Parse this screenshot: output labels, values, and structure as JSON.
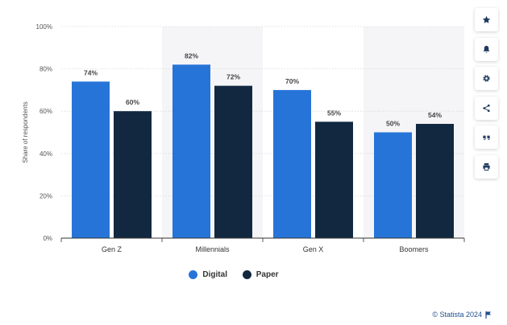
{
  "chart_data": {
    "type": "bar",
    "categories": [
      "Gen Z",
      "Millennials",
      "Gen X",
      "Boomers"
    ],
    "series": [
      {
        "name": "Digital",
        "values": [
          74,
          82,
          70,
          50
        ],
        "color": "#2774d8"
      },
      {
        "name": "Paper",
        "values": [
          60,
          72,
          55,
          54
        ],
        "color": "#112840"
      }
    ],
    "value_labels": {
      "Digital": [
        "74%",
        "82%",
        "70%",
        "50%"
      ],
      "Paper": [
        "60%",
        "72%",
        "55%",
        "54%"
      ]
    },
    "title": "",
    "xlabel": "",
    "ylabel": "Share of respondents",
    "ylim": [
      0,
      100
    ],
    "yticks": [
      0,
      20,
      40,
      60,
      80,
      100
    ],
    "ytick_labels": [
      "0%",
      "20%",
      "40%",
      "60%",
      "80%",
      "100%"
    ],
    "grid": true,
    "legend_position": "bottom",
    "band_color": "#f5f5f7"
  },
  "legend": {
    "digital": "Digital",
    "paper": "Paper"
  },
  "toolbar": [
    {
      "icon": "star-icon"
    },
    {
      "icon": "bell-icon"
    },
    {
      "icon": "gear-icon"
    },
    {
      "icon": "share-icon"
    },
    {
      "icon": "quote-icon"
    },
    {
      "icon": "print-icon"
    }
  ],
  "copyright": "© Statista 2024",
  "accent_color": "#2774d8"
}
